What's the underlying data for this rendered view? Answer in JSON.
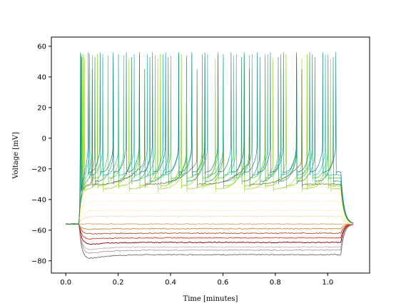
{
  "chart_data": {
    "type": "line",
    "title": "",
    "xlabel": "Time [minutes]",
    "ylabel": "Voltage [mV]",
    "xlim": [
      -0.055,
      1.16
    ],
    "ylim": [
      -88,
      66
    ],
    "xticks": [
      0.0,
      0.2,
      0.4,
      0.6,
      0.8,
      1.0
    ],
    "xtick_labels": [
      "0.0",
      "0.2",
      "0.4",
      "0.6",
      "0.8",
      "1.0"
    ],
    "yticks": [
      -80,
      -60,
      -40,
      -20,
      0,
      20,
      40,
      60
    ],
    "ytick_labels": [
      "−80",
      "−60",
      "−40",
      "−20",
      "0",
      "20",
      "40",
      "60"
    ],
    "grid": false,
    "legend": "none",
    "stimulus_window": [
      0.05,
      1.05
    ],
    "baseline_mv": -56,
    "hyperpolarized_series": [
      {
        "plateau": -76,
        "sag_min": -82,
        "color": "#6e6e6e"
      },
      {
        "plateau": -73,
        "sag_min": -78,
        "color": "#b09aa0"
      },
      {
        "plateau": -71,
        "sag_min": -75,
        "color": "#c9aeb3"
      },
      {
        "plateau": -68,
        "sag_min": -71,
        "color": "#8b0000"
      },
      {
        "plateau": -65,
        "sag_min": -67,
        "color": "#d43a1a"
      },
      {
        "plateau": -62,
        "sag_min": -63,
        "color": "#a0522d"
      },
      {
        "plateau": -59,
        "sag_min": -60,
        "color": "#cd853f"
      },
      {
        "plateau": -56,
        "sag_min": -56,
        "color": "#e0a060"
      }
    ],
    "subthreshold_series": [
      {
        "plateau": -51,
        "color": "#f5deb3"
      },
      {
        "plateau": -47,
        "color": "#fbeec8"
      },
      {
        "plateau": -41,
        "color": "#fff3c4"
      },
      {
        "plateau": -36,
        "color": "#fbf7d8"
      },
      {
        "plateau": -32,
        "color": "#fff8d0"
      }
    ],
    "spiking_series": [
      {
        "trough": -33,
        "spike_peak": 52,
        "spike_times": [
          0.07,
          0.14,
          0.24,
          0.35,
          0.46,
          0.57,
          0.68,
          0.79,
          0.9,
          1.01
        ],
        "color": "#9acd32"
      },
      {
        "trough": -31,
        "spike_peak": 55,
        "spike_times": [
          0.065,
          0.12,
          0.2,
          0.28,
          0.36,
          0.44,
          0.52,
          0.6,
          0.68,
          0.76,
          0.84,
          0.92,
          1.0
        ],
        "color": "#7ccd00"
      },
      {
        "trough": -28,
        "spike_peak": 53,
        "spike_times": [
          0.06,
          0.11,
          0.18,
          0.25,
          0.32,
          0.39,
          0.46,
          0.53,
          0.6,
          0.67,
          0.74,
          0.81,
          0.88,
          0.95,
          1.02
        ],
        "color": "#2e8b57"
      },
      {
        "trough": -26,
        "spike_peak": 54,
        "spike_times": [
          0.058,
          0.1,
          0.16,
          0.22,
          0.28,
          0.34,
          0.4,
          0.46,
          0.52,
          0.58,
          0.64,
          0.7,
          0.76,
          0.82,
          0.88,
          0.94,
          1.0
        ],
        "color": "#32cd32"
      },
      {
        "trough": -24,
        "spike_peak": 55,
        "spike_times": [
          0.056,
          0.09,
          0.14,
          0.2,
          0.26,
          0.31,
          0.37,
          0.43,
          0.48,
          0.54,
          0.6,
          0.65,
          0.71,
          0.77,
          0.82,
          0.88,
          0.94,
          0.99
        ],
        "color": "#20b2aa"
      },
      {
        "trough": -22,
        "spike_peak": 56,
        "spike_times": [
          0.055,
          0.085,
          0.13,
          0.18,
          0.23,
          0.28,
          0.33,
          0.38,
          0.43,
          0.48,
          0.53,
          0.58,
          0.63,
          0.68,
          0.73,
          0.78,
          0.83,
          0.88,
          0.93,
          0.98,
          1.03
        ],
        "color": "#008080"
      },
      {
        "trough": -30,
        "spike_peak": 45,
        "spike_times": [
          0.1,
          0.3,
          0.5,
          0.7,
          0.9
        ],
        "color": "#556b2f"
      }
    ]
  }
}
